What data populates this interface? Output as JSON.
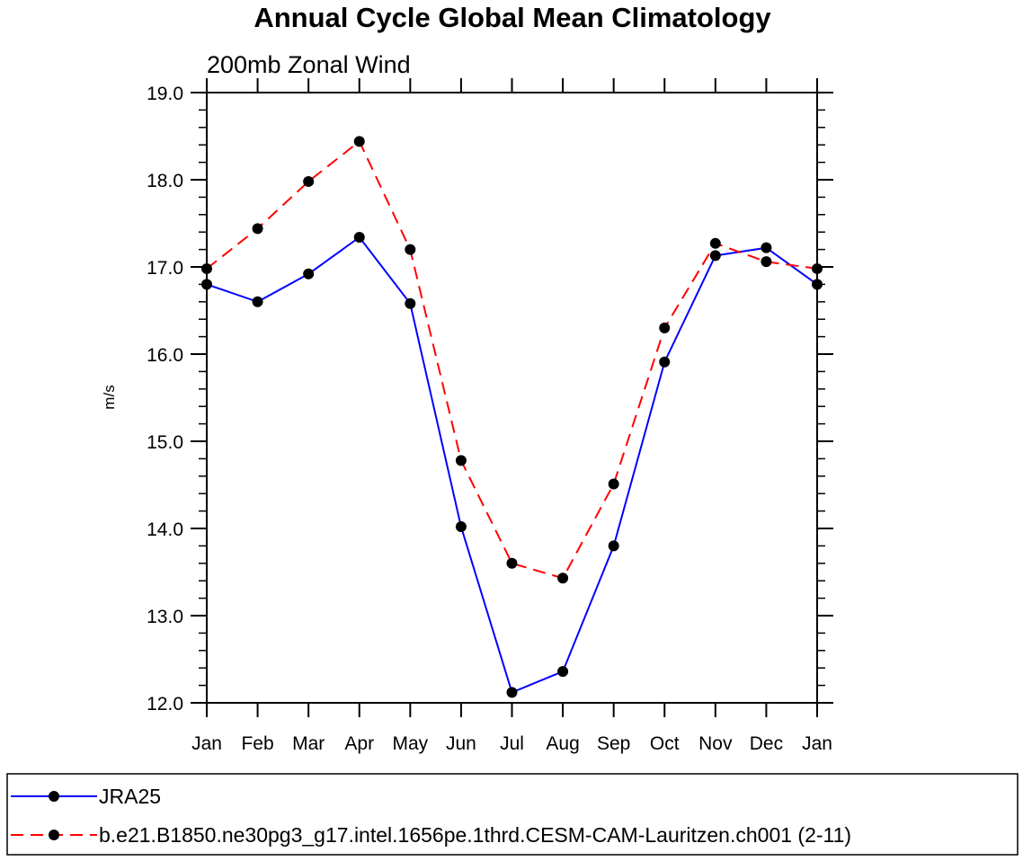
{
  "chart_data": {
    "type": "line",
    "title": "Annual Cycle Global Mean Climatology",
    "subtitle": "200mb Zonal Wind",
    "ylabel": "m/s",
    "xlabel": "",
    "categories": [
      "Jan",
      "Feb",
      "Mar",
      "Apr",
      "May",
      "Jun",
      "Jul",
      "Aug",
      "Sep",
      "Oct",
      "Nov",
      "Dec",
      "Jan"
    ],
    "ylim": [
      12.0,
      19.0
    ],
    "yticks": [
      "12.0",
      "13.0",
      "14.0",
      "15.0",
      "16.0",
      "17.0",
      "18.0",
      "19.0"
    ],
    "grid": false,
    "legend_position": "bottom",
    "series": [
      {
        "name": "JRA25",
        "color": "#0000ff",
        "line_style": "solid",
        "marker": "filled-circle",
        "values": [
          16.8,
          16.6,
          16.92,
          17.34,
          16.58,
          14.02,
          12.12,
          12.36,
          13.8,
          15.91,
          17.13,
          17.22,
          16.8
        ]
      },
      {
        "name": "b.e21.B1850.ne30pg3_g17.intel.1656pe.1thrd.CESM-CAM-Lauritzen.ch001 (2-11)",
        "color": "#ff0000",
        "line_style": "dashed",
        "marker": "filled-circle",
        "values": [
          16.98,
          17.44,
          17.98,
          18.44,
          17.2,
          14.78,
          13.6,
          13.43,
          14.51,
          16.3,
          17.27,
          17.06,
          16.98
        ]
      }
    ]
  }
}
